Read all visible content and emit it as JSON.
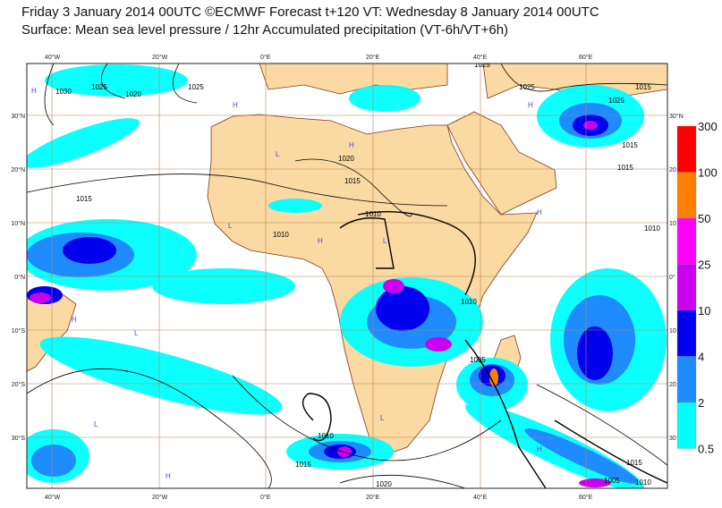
{
  "header": {
    "title_line1": "Friday 3 January 2014 00UTC ©ECMWF Forecast t+120 VT: Wednesday 8 January 2014 00UTC",
    "title_line2": "Surface: Mean sea level pressure / 12hr Accumulated precipitation (VT-6h/VT+6h)"
  },
  "map": {
    "lon_labels": [
      "40°W",
      "20°W",
      "0°E",
      "20°E",
      "40°E",
      "60°E"
    ],
    "lat_labels_left": [
      "30°N",
      "20°N",
      "10°N",
      "0°N",
      "10°S",
      "20°S",
      "30°S"
    ],
    "lat_labels_right": [
      "30°N",
      "20",
      "10",
      "0°",
      "10",
      "20",
      "30"
    ],
    "isobar_labels": [
      "1030",
      "1025",
      "1020",
      "1015",
      "1025",
      "1020",
      "1015",
      "1015",
      "1010",
      "1010",
      "1010",
      "1005",
      "1015",
      "1010",
      "1015",
      "1020",
      "1025",
      "1025",
      "1025",
      "1015",
      "1010",
      "1015",
      "1005",
      "1010"
    ],
    "pressure_centers": [
      "H",
      "H",
      "H",
      "L",
      "H",
      "L",
      "H",
      "L",
      "H",
      "L",
      "H",
      "H",
      "L",
      "H",
      "L"
    ]
  },
  "legend": {
    "values": [
      "300",
      "100",
      "50",
      "25",
      "10",
      "4",
      "2",
      "0.5"
    ],
    "colors": [
      "#ff0000",
      "#ff8000",
      "#ff00ff",
      "#cc00ee",
      "#0000ee",
      "#1e8cff",
      "#00ffff"
    ]
  }
}
